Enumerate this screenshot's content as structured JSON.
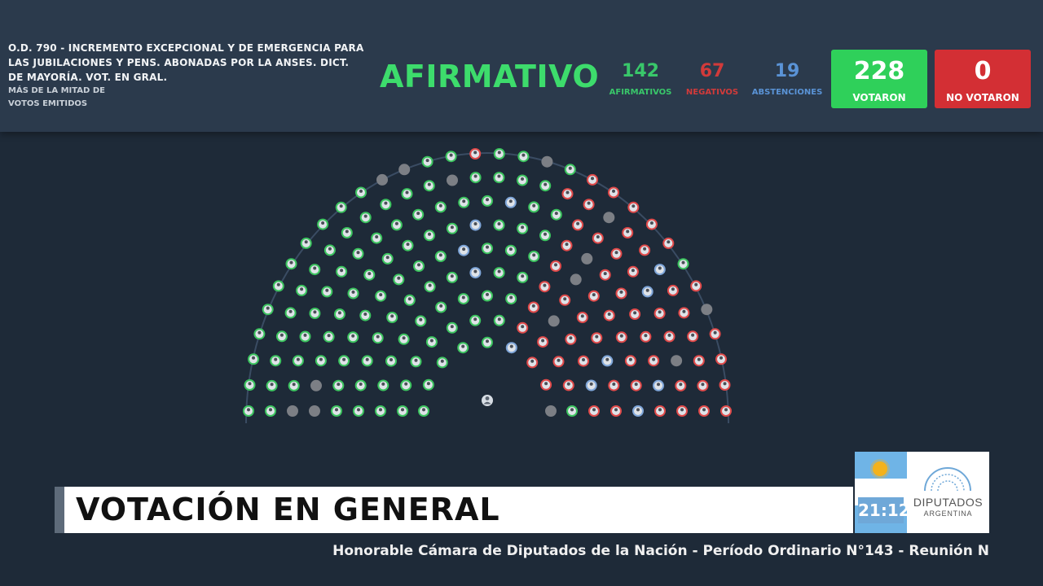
{
  "motion": {
    "title": "O.D. 790 - INCREMENTO EXCEPCIONAL Y DE EMERGENCIA PARA LAS JUBILACIONES Y PENS. ABONADAS POR LA ANSES. DICT. DE MAYORÍA. VOT. EN GRAL.",
    "majority_rule": "MÁS DE LA MITAD DE VOTOS EMITIDOS"
  },
  "result": "AFIRMATIVO",
  "counts": {
    "afirmativos": {
      "value": "142",
      "label": "AFIRMATIVOS"
    },
    "negativos": {
      "value": "67",
      "label": "NEGATIVOS"
    },
    "abstenciones": {
      "value": "19",
      "label": "ABSTENCIONES"
    }
  },
  "totals": {
    "votaron": {
      "value": "228",
      "label": "VOTARON"
    },
    "no_votaron": {
      "value": "0",
      "label": "NO VOTARON"
    }
  },
  "chamber": {
    "seat_colors": {
      "afirmativo": "#3cc45f",
      "negativo": "#e04a4a",
      "abstencion": "#7fa6d9",
      "ausente": "#7c7f85"
    }
  },
  "lower_third": {
    "title": "VOTACIÓN EN GENERAL"
  },
  "logo": {
    "time": "21:12",
    "line1": "DIPUTADOS",
    "line2": "ARGENTINA"
  },
  "ticker": {
    "text": "Honorable Cámara de Diputados de la Nación - Período Ordinario N°143 - Reunión N"
  }
}
